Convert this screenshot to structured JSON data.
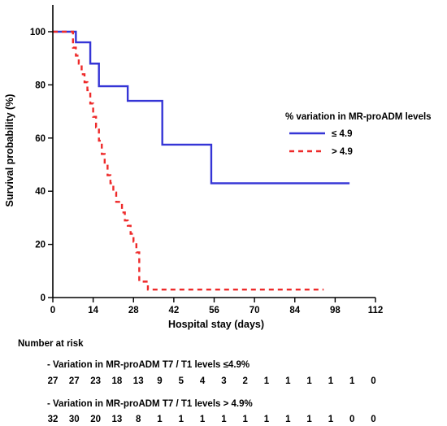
{
  "chart_data": {
    "type": "line",
    "xlabel": "Hospital stay (days)",
    "ylabel": "Survival probability (%)",
    "xlim": [
      0,
      112
    ],
    "ylim": [
      0,
      100
    ],
    "xticks": [
      0,
      14,
      28,
      42,
      56,
      70,
      84,
      98,
      112
    ],
    "yticks": [
      0,
      20,
      40,
      60,
      80,
      100
    ],
    "grid": false,
    "legend": {
      "title": "% variation in MR-proADM levels",
      "placement": "right-middle"
    },
    "series": [
      {
        "name": "≤ 4.9",
        "color": "#3535d6",
        "style": "solid",
        "x": [
          0,
          8,
          13,
          16,
          17,
          26,
          38,
          55,
          103
        ],
        "y": [
          100,
          96,
          88,
          79.5,
          79.5,
          74,
          57.5,
          43,
          43
        ]
      },
      {
        "name": "> 4.9",
        "color": "#ee2a2a",
        "style": "dashed",
        "x": [
          0,
          7,
          8,
          9,
          10,
          11,
          12,
          13,
          14,
          15,
          16,
          17,
          18,
          19,
          20,
          21,
          22,
          24,
          25,
          26,
          27,
          28,
          29,
          30,
          33,
          94
        ],
        "y": [
          100,
          94,
          91,
          88,
          84,
          81,
          78,
          73,
          68,
          64,
          59,
          54,
          50,
          46,
          43,
          39.5,
          36,
          32,
          29,
          27,
          24,
          21,
          17,
          6,
          3,
          3
        ]
      }
    ]
  },
  "risk_table": {
    "title": "Number at risk",
    "groups": [
      {
        "label": "- Variation in MR-proADM T7 / T1 levels ≤4.9%",
        "counts": [
          "27",
          "27",
          "23",
          "18",
          "13",
          "9",
          "5",
          "4",
          "3",
          "2",
          "1",
          "1",
          "1",
          "1",
          "1",
          "0"
        ]
      },
      {
        "label": "- Variation in MR-proADM T7 / T1 levels > 4.9%",
        "counts": [
          "32",
          "30",
          "20",
          "13",
          "8",
          "1",
          "1",
          "1",
          "1",
          "1",
          "1",
          "1",
          "1",
          "1",
          "0",
          "0"
        ]
      }
    ]
  }
}
